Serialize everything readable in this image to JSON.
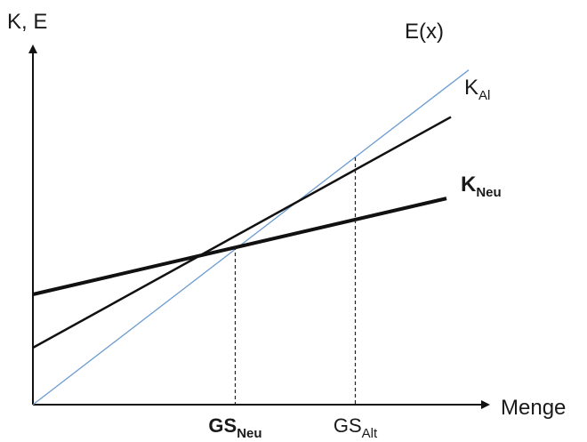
{
  "chart_data": {
    "type": "line",
    "title": "",
    "ylabel": "K, E",
    "xlabel": "Menge",
    "xlim": [
      0,
      100
    ],
    "ylim": [
      0,
      100
    ],
    "grid": false,
    "series": [
      {
        "name": "E(x)",
        "name_main": "E(x)",
        "name_sub": "",
        "bold": false,
        "color": "#6b9bd1",
        "width": 1.3,
        "x": [
          0,
          100
        ],
        "y": [
          0,
          96
        ]
      },
      {
        "name": "KAl",
        "name_main": "K",
        "name_sub": "Al",
        "bold": false,
        "color": "#111111",
        "width": 2.5,
        "x": [
          0,
          100
        ],
        "y": [
          16,
          85
        ]
      },
      {
        "name": "KNeu",
        "name_main": "K",
        "name_sub": "Neu",
        "bold": true,
        "color": "#111111",
        "width": 4,
        "x": [
          0,
          100
        ],
        "y": [
          31,
          60
        ]
      }
    ],
    "markers": [
      {
        "name": "GSNeu",
        "label_main": "GS",
        "label_sub": "Neu",
        "bold": true,
        "x": 45.5,
        "y": 44.5
      },
      {
        "name": "GSAlt",
        "label_main": "GS",
        "label_sub": "Alt",
        "bold": false,
        "x": 72.5,
        "y": 69.5
      }
    ]
  }
}
